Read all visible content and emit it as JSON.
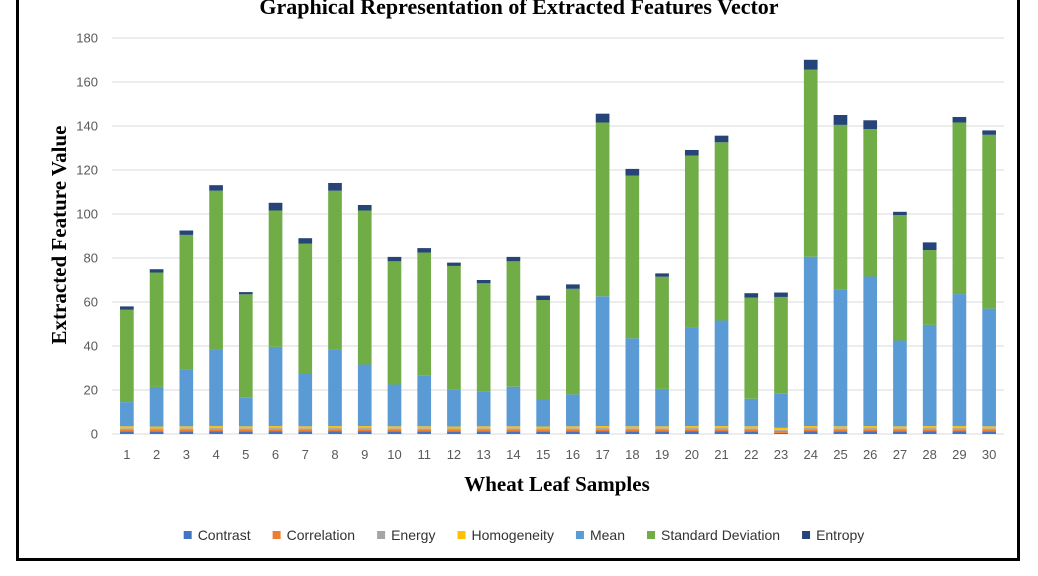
{
  "chart_data": {
    "type": "bar",
    "stacked": true,
    "title": "Graphical Representation of Extracted Features Vector",
    "xlabel": "Wheat Leaf Samples",
    "ylabel": "Extracted  Feature  Value",
    "ylim": [
      0,
      180
    ],
    "yticks": [
      0,
      20,
      40,
      60,
      80,
      100,
      120,
      140,
      160,
      180
    ],
    "grid": true,
    "legend_position": "bottom",
    "categories": [
      "1",
      "2",
      "3",
      "4",
      "5",
      "6",
      "7",
      "8",
      "9",
      "10",
      "11",
      "12",
      "13",
      "14",
      "15",
      "16",
      "17",
      "18",
      "19",
      "20",
      "21",
      "22",
      "23",
      "24",
      "25",
      "26",
      "27",
      "28",
      "29",
      "30"
    ],
    "series": [
      {
        "name": "Contrast",
        "color": "#4472c4",
        "values": [
          1.2,
          1.1,
          1.2,
          1.3,
          1.2,
          1.3,
          1.2,
          1.3,
          1.3,
          1.2,
          1.2,
          1.1,
          1.2,
          1.2,
          1.1,
          1.2,
          1.3,
          1.2,
          1.2,
          1.3,
          1.3,
          1.2,
          0.5,
          1.3,
          1.2,
          1.3,
          1.2,
          1.3,
          1.3,
          1.2
        ]
      },
      {
        "name": "Correlation",
        "color": "#ed7d31",
        "values": [
          0.9,
          0.9,
          0.9,
          0.9,
          0.9,
          0.9,
          0.9,
          0.9,
          0.9,
          0.9,
          0.9,
          0.9,
          0.9,
          0.9,
          0.9,
          0.9,
          0.9,
          0.9,
          0.9,
          0.9,
          0.9,
          0.9,
          0.9,
          0.9,
          0.9,
          0.9,
          0.9,
          0.9,
          0.9,
          0.9
        ]
      },
      {
        "name": "Energy",
        "color": "#a5a5a5",
        "values": [
          0.5,
          0.5,
          0.5,
          0.5,
          0.5,
          0.5,
          0.5,
          0.5,
          0.5,
          0.5,
          0.5,
          0.5,
          0.5,
          0.5,
          0.5,
          0.5,
          0.5,
          0.5,
          0.5,
          0.5,
          0.5,
          0.5,
          0.5,
          0.5,
          0.5,
          0.5,
          0.5,
          0.5,
          0.5,
          0.5
        ]
      },
      {
        "name": "Homogeneity",
        "color": "#ffc000",
        "values": [
          0.9,
          0.9,
          0.9,
          0.9,
          0.9,
          0.9,
          0.9,
          0.9,
          0.9,
          0.9,
          0.9,
          0.9,
          0.9,
          0.9,
          0.9,
          0.9,
          0.9,
          0.9,
          0.9,
          0.9,
          0.9,
          0.9,
          0.9,
          0.9,
          0.9,
          0.9,
          0.9,
          0.9,
          0.9,
          0.9
        ]
      },
      {
        "name": "Mean",
        "color": "#5b9bd5",
        "values": [
          11,
          18,
          26,
          35,
          13,
          36,
          24,
          35,
          28,
          19,
          23,
          17,
          16,
          18,
          12.5,
          14.5,
          59,
          40,
          17,
          45,
          48,
          12.5,
          15.5,
          77,
          62,
          68,
          39,
          46,
          60,
          53.5
        ]
      },
      {
        "name": "Standard Deviation",
        "color": "#70ad47",
        "values": [
          42,
          52,
          61,
          72,
          47,
          62,
          59,
          72,
          70,
          56,
          56,
          56,
          49,
          57,
          45,
          48,
          79,
          74,
          51,
          78,
          81,
          46,
          44,
          85,
          75,
          67,
          57,
          34,
          78,
          79
        ]
      },
      {
        "name": "Entropy",
        "color": "#264478",
        "values": [
          1.5,
          1.5,
          2,
          2.5,
          1,
          3.5,
          2.5,
          3.5,
          2.5,
          2,
          2,
          1.5,
          1.5,
          2,
          2,
          2,
          4,
          3,
          1.5,
          2.5,
          3,
          2,
          2,
          4.5,
          4.5,
          4,
          1.5,
          3.5,
          2.5,
          2
        ]
      }
    ]
  }
}
